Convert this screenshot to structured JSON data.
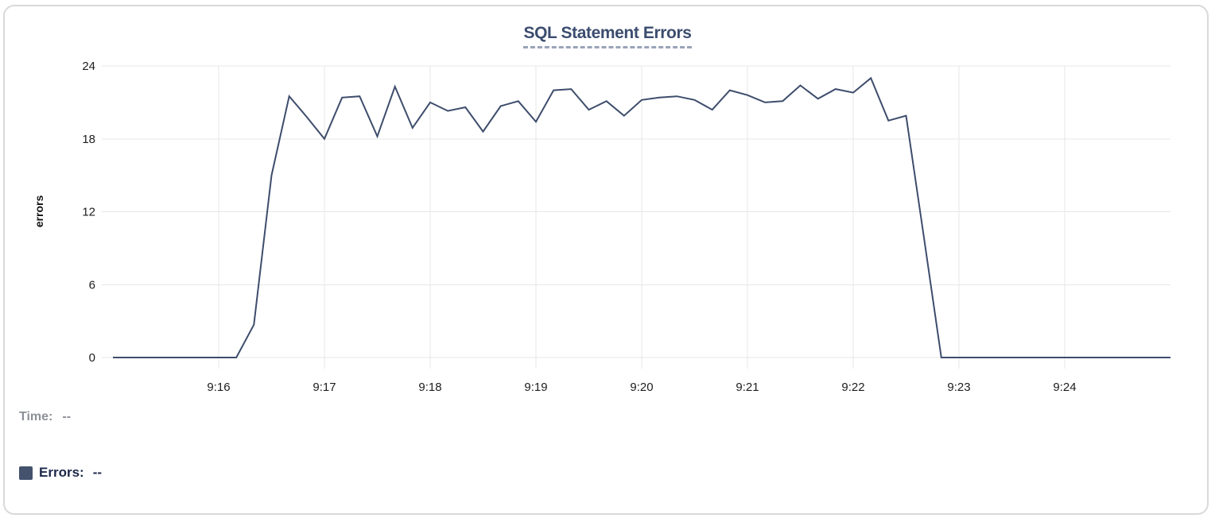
{
  "title": {
    "text": "SQL Statement Errors"
  },
  "legend": {
    "time_label": "Time:",
    "time_value": "--",
    "errors_label": "Errors:",
    "errors_value": "--"
  },
  "colors": {
    "line": "#3e4d6c",
    "swatch": "#44526e",
    "title": "#3b4d6f",
    "title_underline": "#9aa4b8",
    "grid": "#e7e7e7",
    "tick_text": "#1d1d1d",
    "time_label_gray": "#8d9097",
    "errors_label_navy": "#1c2749",
    "card_border": "#d9d9d9"
  },
  "chart_data": {
    "type": "line",
    "title": "SQL Statement Errors",
    "xlabel": "",
    "ylabel": "errors",
    "grid": true,
    "legend_position": "bottom-left",
    "x_start": "9:15:00",
    "x_end": "9:25:00",
    "x_span_seconds": 600,
    "x_interval_seconds": 10,
    "xticks": [
      {
        "label": "9:16",
        "offset_s": 60
      },
      {
        "label": "9:17",
        "offset_s": 120
      },
      {
        "label": "9:18",
        "offset_s": 180
      },
      {
        "label": "9:19",
        "offset_s": 240
      },
      {
        "label": "9:20",
        "offset_s": 300
      },
      {
        "label": "9:21",
        "offset_s": 360
      },
      {
        "label": "9:22",
        "offset_s": 420
      },
      {
        "label": "9:23",
        "offset_s": 480
      },
      {
        "label": "9:24",
        "offset_s": 540
      }
    ],
    "yticks": [
      0,
      6,
      12,
      18,
      24
    ],
    "ylim": [
      0,
      24
    ],
    "series": [
      {
        "name": "Errors",
        "color": "#3e4d6c",
        "values": [
          0,
          0,
          0,
          0,
          0,
          0,
          0,
          0,
          2.7,
          15,
          21.5,
          19.8,
          18,
          21.4,
          21.5,
          18.2,
          22.3,
          18.9,
          21,
          20.3,
          20.6,
          18.6,
          20.7,
          21.1,
          19.4,
          22,
          22.1,
          20.4,
          21.1,
          19.9,
          21.2,
          21.4,
          21.5,
          21.2,
          20.4,
          22,
          21.6,
          21,
          21.1,
          22.4,
          21.3,
          22.1,
          21.8,
          23,
          19.5,
          19.9,
          10,
          0,
          0,
          0,
          0,
          0,
          0,
          0,
          0,
          0,
          0,
          0,
          0,
          0,
          0
        ]
      }
    ]
  }
}
